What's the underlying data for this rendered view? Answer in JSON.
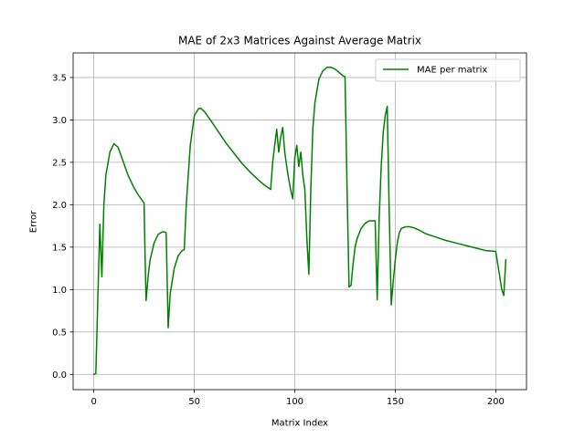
{
  "chart_data": {
    "type": "line",
    "title": "MAE of 2x3 Matrices Against Average Matrix",
    "xlabel": "Matrix Index",
    "ylabel": "Error",
    "xlim": [
      -10.3,
      215.3
    ],
    "ylim": [
      -0.18,
      3.79
    ],
    "xticks": [
      0,
      50,
      100,
      150,
      200
    ],
    "yticks": [
      0.0,
      0.5,
      1.0,
      1.5,
      2.0,
      2.5,
      3.0,
      3.5
    ],
    "xtick_labels": [
      "0",
      "50",
      "100",
      "150",
      "200"
    ],
    "ytick_labels": [
      "0.0",
      "0.5",
      "1.0",
      "1.5",
      "2.0",
      "2.5",
      "3.0",
      "3.5"
    ],
    "grid": true,
    "legend_position": "top-right",
    "series": [
      {
        "name": "MAE per matrix",
        "color": "#008000",
        "x": [
          0,
          1,
          2,
          3,
          4,
          5,
          6,
          8,
          10,
          12,
          14,
          17,
          20,
          22,
          25,
          25.5,
          26,
          27,
          28,
          30,
          32,
          34,
          35,
          36,
          37,
          38,
          40,
          42,
          44,
          45,
          46,
          48,
          50,
          52,
          53,
          55,
          58,
          62,
          66,
          70,
          74,
          78,
          82,
          85,
          88,
          89,
          90,
          91,
          92,
          93,
          94,
          95,
          96,
          97,
          98,
          99,
          100,
          101,
          102,
          103,
          104,
          105,
          106,
          107,
          108,
          109,
          110,
          112,
          114,
          116,
          118,
          120,
          122,
          124,
          125,
          126,
          127,
          128,
          129,
          130,
          131,
          133,
          135,
          137,
          139,
          140,
          141,
          142,
          143,
          144,
          145,
          146,
          147,
          148,
          149,
          150,
          151,
          152,
          153,
          155,
          157,
          159,
          162,
          165,
          170,
          175,
          180,
          185,
          190,
          195,
          200,
          203,
          204,
          205
        ],
        "y": [
          0.0,
          0.01,
          0.9,
          1.77,
          1.15,
          2.0,
          2.35,
          2.62,
          2.72,
          2.68,
          2.55,
          2.35,
          2.2,
          2.12,
          2.02,
          1.4,
          0.87,
          1.15,
          1.35,
          1.55,
          1.65,
          1.68,
          1.68,
          1.67,
          0.55,
          0.95,
          1.25,
          1.4,
          1.46,
          1.47,
          2.0,
          2.7,
          3.05,
          3.13,
          3.14,
          3.1,
          3.0,
          2.86,
          2.72,
          2.6,
          2.48,
          2.38,
          2.29,
          2.23,
          2.18,
          2.5,
          2.7,
          2.89,
          2.62,
          2.8,
          2.91,
          2.62,
          2.45,
          2.3,
          2.17,
          2.07,
          2.55,
          2.7,
          2.45,
          2.62,
          2.35,
          2.18,
          1.6,
          1.18,
          2.2,
          2.9,
          3.2,
          3.48,
          3.58,
          3.62,
          3.62,
          3.6,
          3.56,
          3.52,
          3.51,
          2.2,
          1.03,
          1.05,
          1.3,
          1.5,
          1.6,
          1.72,
          1.78,
          1.81,
          1.81,
          1.81,
          0.88,
          1.85,
          2.45,
          2.85,
          3.05,
          3.16,
          1.9,
          0.82,
          1.1,
          1.35,
          1.55,
          1.67,
          1.72,
          1.74,
          1.74,
          1.73,
          1.7,
          1.66,
          1.62,
          1.58,
          1.55,
          1.52,
          1.49,
          1.46,
          1.45,
          1.0,
          0.93,
          1.35
        ]
      }
    ]
  }
}
